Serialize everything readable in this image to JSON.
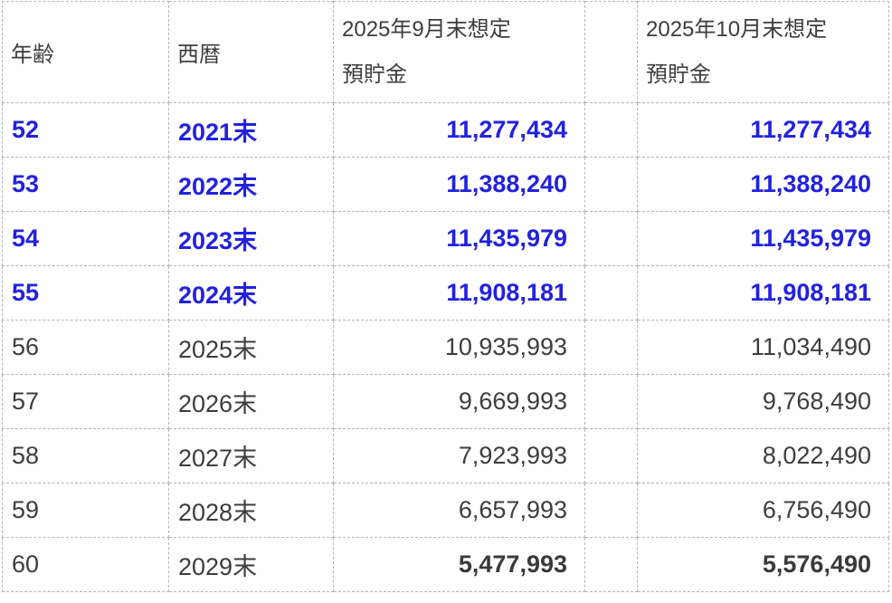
{
  "chart_data": {
    "type": "table",
    "columns": [
      {
        "id": "age",
        "label": "年齢"
      },
      {
        "id": "year",
        "label": "西暦"
      },
      {
        "id": "sep_savings",
        "label": "2025年9月末想定預貯金",
        "label_lines": [
          "2025年9月末想定",
          "預貯金"
        ]
      },
      {
        "id": "spacer",
        "label": ""
      },
      {
        "id": "oct_savings",
        "label": "2025年10月末想定預貯金",
        "label_lines": [
          "2025年10月末想定",
          "預貯金"
        ]
      }
    ],
    "rows": [
      {
        "age": "52",
        "year": "2021末",
        "sep": "11,277,434",
        "oct": "11,277,434",
        "emphasis": "past-actual-blue-bold"
      },
      {
        "age": "53",
        "year": "2022末",
        "sep": "11,388,240",
        "oct": "11,388,240",
        "emphasis": "past-actual-blue-bold"
      },
      {
        "age": "54",
        "year": "2023末",
        "sep": "11,435,979",
        "oct": "11,435,979",
        "emphasis": "past-actual-blue-bold"
      },
      {
        "age": "55",
        "year": "2024末",
        "sep": "11,908,181",
        "oct": "11,908,181",
        "emphasis": "past-actual-blue-bold"
      },
      {
        "age": "56",
        "year": "2025末",
        "sep": "10,935,993",
        "oct": "11,034,490",
        "emphasis": "none"
      },
      {
        "age": "57",
        "year": "2026末",
        "sep": "9,669,993",
        "oct": "9,768,490",
        "emphasis": "none"
      },
      {
        "age": "58",
        "year": "2027末",
        "sep": "7,923,993",
        "oct": "8,022,490",
        "emphasis": "none"
      },
      {
        "age": "59",
        "year": "2028末",
        "sep": "6,657,993",
        "oct": "6,756,490",
        "emphasis": "none"
      },
      {
        "age": "60",
        "year": "2029末",
        "sep": "5,477,993",
        "oct": "5,576,490",
        "emphasis": "final-values-bold"
      }
    ]
  },
  "colors": {
    "past_text_blue": "#2222dd",
    "body_text": "#3d3d3d",
    "grid_border": "#b5b5b5",
    "background": "#ffffff"
  }
}
